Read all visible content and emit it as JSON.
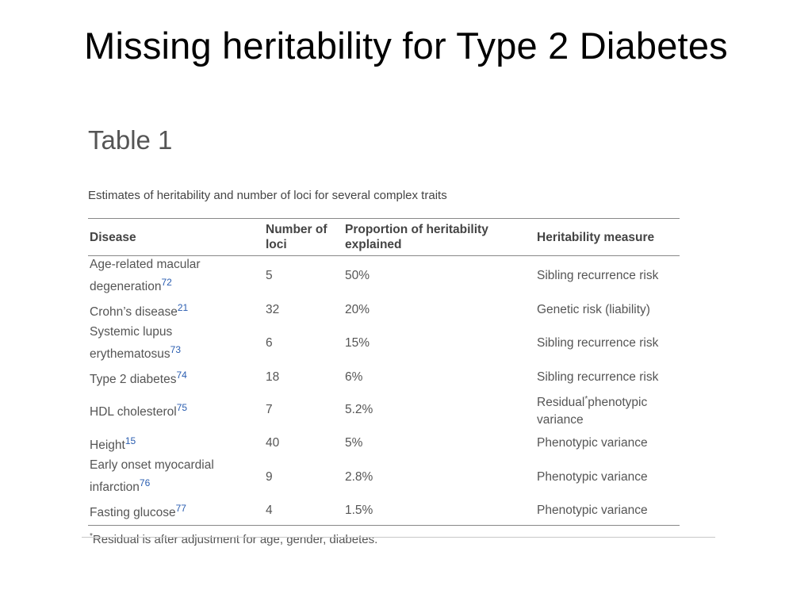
{
  "slide": {
    "title": "Missing heritability for Type 2 Diabetes"
  },
  "table": {
    "heading": "Table 1",
    "caption": "Estimates of heritability and number of loci for several complex traits",
    "headers": {
      "disease": "Disease",
      "loci_line1": "Number of",
      "loci_line2": "loci",
      "prop_line1": "Proportion of heritability",
      "prop_line2": "explained",
      "measure": "Heritability measure"
    },
    "rows": [
      {
        "disease_line1": "Age-related macular",
        "disease_line2": "degeneration",
        "ref": "72",
        "loci": "5",
        "proportion": "50%",
        "measure": "Sibling recurrence risk"
      },
      {
        "disease": "Crohn’s disease",
        "ref": "21",
        "loci": "32",
        "proportion": "20%",
        "measure": "Genetic risk (liability)"
      },
      {
        "disease_line1": "Systemic lupus",
        "disease_line2": "erythematosus",
        "ref": "73",
        "loci": "6",
        "proportion": "15%",
        "measure": "Sibling recurrence risk"
      },
      {
        "disease": "Type 2 diabetes",
        "ref": "74",
        "loci": "18",
        "proportion": "6%",
        "measure": "Sibling recurrence risk"
      },
      {
        "disease": "HDL cholesterol",
        "ref": "75",
        "loci": "7",
        "proportion": "5.2%",
        "measure_part1": "Residual",
        "measure_sup": "*",
        "measure_part2": "phenotypic",
        "measure_line2": "variance"
      },
      {
        "disease": "Height",
        "ref": "15",
        "loci": "40",
        "proportion": "5%",
        "measure": "Phenotypic variance"
      },
      {
        "disease_line1": "Early onset myocardial",
        "disease_line2": "infarction",
        "ref": "76",
        "loci": "9",
        "proportion": "2.8%",
        "measure": "Phenotypic variance"
      },
      {
        "disease": "Fasting glucose",
        "ref": "77",
        "loci": "4",
        "proportion": "1.5%",
        "measure": "Phenotypic variance"
      }
    ],
    "footnote_mark": "*",
    "footnote": "Residual is after adjustment for age, gender, diabetes."
  }
}
